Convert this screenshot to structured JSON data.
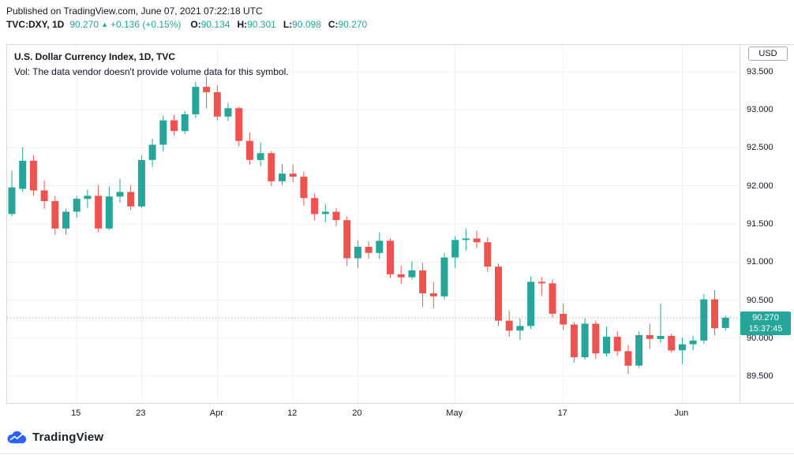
{
  "header": {
    "published": "Published on TradingView.com, June 07, 2021 07:22:18 UTC",
    "symbol": "TVC:DXY, 1D",
    "last_price": "90.270",
    "up_arrow": "▲",
    "change": "+0.136 (+0.15%)",
    "ohlc": [
      {
        "label": "O:",
        "value": "90.134"
      },
      {
        "label": "H:",
        "value": "90.301"
      },
      {
        "label": "L:",
        "value": "90.098"
      },
      {
        "label": "C:",
        "value": "90.270"
      }
    ]
  },
  "chart": {
    "legend_title": "U.S. Dollar Currency Index, 1D, TVC",
    "vol_note": "Vol: The data vendor doesn't provide volume data for this symbol.",
    "currency": "USD",
    "last_price": "90.270",
    "countdown": "15:37:45"
  },
  "footer": {
    "brand": "TradingView",
    "logo_color": "#2962ff"
  },
  "chart_data": {
    "type": "candlestick",
    "title": "U.S. Dollar Currency Index, 1D, TVC",
    "symbol": "TVC:DXY",
    "interval": "1D",
    "last_price_value": 90.27,
    "countdown": "15:37:45",
    "grid": true,
    "colors": {
      "up": "#26a69a",
      "down": "#ef5350",
      "brand_blue": "#2962ff"
    },
    "y_axis": {
      "min": 89.15,
      "max": 93.85,
      "ticks": [
        {
          "value": 93.5,
          "label": "93.500"
        },
        {
          "value": 93.0,
          "label": "93.000"
        },
        {
          "value": 92.5,
          "label": "92.500"
        },
        {
          "value": 92.0,
          "label": "92.000"
        },
        {
          "value": 91.5,
          "label": "91.500"
        },
        {
          "value": 91.0,
          "label": "91.000"
        },
        {
          "value": 90.5,
          "label": "90.500"
        },
        {
          "value": 90.0,
          "label": "90.000"
        },
        {
          "value": 89.5,
          "label": "89.500"
        }
      ]
    },
    "x_axis": {
      "ticks": [
        {
          "label": "15",
          "index": 6
        },
        {
          "label": "23",
          "index": 12
        },
        {
          "label": "Apr",
          "index": 19
        },
        {
          "label": "12",
          "index": 26
        },
        {
          "label": "20",
          "index": 32
        },
        {
          "label": "May",
          "index": 41
        },
        {
          "label": "17",
          "index": 51
        },
        {
          "label": "Jun",
          "index": 62
        }
      ]
    },
    "candles": [
      [
        "Mar 5",
        91.63,
        92.2,
        91.6,
        91.98
      ],
      [
        "Mar 8",
        91.96,
        92.51,
        91.92,
        92.33
      ],
      [
        "Mar 9",
        92.33,
        92.4,
        91.87,
        91.94
      ],
      [
        "Mar 10",
        91.94,
        92.07,
        91.7,
        91.8
      ],
      [
        "Mar 11",
        91.8,
        91.87,
        91.36,
        91.44
      ],
      [
        "Mar 12",
        91.44,
        91.7,
        91.36,
        91.66
      ],
      [
        "Mar 15",
        91.66,
        91.87,
        91.58,
        91.83
      ],
      [
        "Mar 16",
        91.83,
        91.95,
        91.71,
        91.87
      ],
      [
        "Mar 17",
        91.87,
        92.01,
        91.39,
        91.44
      ],
      [
        "Mar 18",
        91.44,
        91.99,
        91.42,
        91.86
      ],
      [
        "Mar 19",
        91.86,
        92.09,
        91.78,
        91.92
      ],
      [
        "Mar 22",
        91.92,
        92.01,
        91.68,
        91.73
      ],
      [
        "Mar 23",
        91.73,
        92.4,
        91.71,
        92.34
      ],
      [
        "Mar 24",
        92.34,
        92.62,
        92.25,
        92.54
      ],
      [
        "Mar 25",
        92.54,
        92.92,
        92.45,
        92.86
      ],
      [
        "Mar 26",
        92.86,
        92.93,
        92.66,
        92.72
      ],
      [
        "Mar 29",
        92.72,
        92.98,
        92.68,
        92.94
      ],
      [
        "Mar 30",
        92.94,
        93.37,
        92.89,
        93.3
      ],
      [
        "Mar 31",
        93.3,
        93.44,
        93.02,
        93.23
      ],
      [
        "Apr 1",
        93.23,
        93.32,
        92.86,
        92.91
      ],
      [
        "Apr 2",
        92.91,
        93.09,
        92.85,
        93.02
      ],
      [
        "Apr 5",
        93.02,
        93.04,
        92.52,
        92.59
      ],
      [
        "Apr 6",
        92.59,
        92.7,
        92.28,
        92.34
      ],
      [
        "Apr 7",
        92.34,
        92.57,
        92.26,
        92.43
      ],
      [
        "Apr 8",
        92.43,
        92.46,
        92.0,
        92.06
      ],
      [
        "Apr 9",
        92.06,
        92.29,
        92.01,
        92.16
      ],
      [
        "Apr 12",
        92.16,
        92.28,
        92.05,
        92.12
      ],
      [
        "Apr 13",
        92.12,
        92.19,
        91.74,
        91.84
      ],
      [
        "Apr 14",
        91.84,
        91.9,
        91.55,
        91.63
      ],
      [
        "Apr 15",
        91.63,
        91.76,
        91.52,
        91.66
      ],
      [
        "Apr 16",
        91.66,
        91.71,
        91.47,
        91.55
      ],
      [
        "Apr 19",
        91.55,
        91.6,
        90.95,
        91.05
      ],
      [
        "Apr 20",
        91.05,
        91.28,
        90.92,
        91.2
      ],
      [
        "Apr 21",
        91.2,
        91.27,
        91.04,
        91.12
      ],
      [
        "Apr 22",
        91.12,
        91.39,
        91.04,
        91.28
      ],
      [
        "Apr 23",
        91.28,
        91.31,
        90.79,
        90.84
      ],
      [
        "Apr 26",
        90.84,
        90.95,
        90.71,
        90.8
      ],
      [
        "Apr 27",
        90.8,
        91.01,
        90.77,
        90.89
      ],
      [
        "Apr 28",
        90.89,
        90.99,
        90.41,
        90.59
      ],
      [
        "Apr 29",
        90.59,
        90.74,
        90.39,
        90.55
      ],
      [
        "Apr 30",
        90.55,
        91.12,
        90.51,
        91.06
      ],
      [
        "May 3",
        91.06,
        91.34,
        90.92,
        91.29
      ],
      [
        "May 4",
        91.29,
        91.44,
        91.15,
        91.31
      ],
      [
        "May 5",
        91.31,
        91.41,
        91.18,
        91.26
      ],
      [
        "May 6",
        91.26,
        91.32,
        90.87,
        90.94
      ],
      [
        "May 7",
        90.94,
        90.98,
        90.16,
        90.23
      ],
      [
        "May 10",
        90.23,
        90.36,
        90.02,
        90.1
      ],
      [
        "May 11",
        90.1,
        90.26,
        89.98,
        90.16
      ],
      [
        "May 12",
        90.16,
        90.81,
        90.12,
        90.74
      ],
      [
        "May 13",
        90.74,
        90.8,
        90.56,
        90.72
      ],
      [
        "May 14",
        90.72,
        90.77,
        90.27,
        90.32
      ],
      [
        "May 17",
        90.32,
        90.45,
        90.11,
        90.18
      ],
      [
        "May 18",
        90.18,
        90.21,
        89.68,
        89.75
      ],
      [
        "May 19",
        89.75,
        90.26,
        89.72,
        90.19
      ],
      [
        "May 20",
        90.19,
        90.23,
        89.73,
        89.8
      ],
      [
        "May 21",
        89.8,
        90.15,
        89.76,
        90.02
      ],
      [
        "May 24",
        90.02,
        90.09,
        89.77,
        89.83
      ],
      [
        "May 25",
        89.83,
        89.91,
        89.53,
        89.64
      ],
      [
        "May 26",
        89.64,
        90.09,
        89.61,
        90.04
      ],
      [
        "May 27",
        90.04,
        90.19,
        89.86,
        89.99
      ],
      [
        "May 28",
        89.99,
        90.45,
        89.94,
        90.03
      ],
      [
        "May 31",
        90.03,
        90.06,
        89.81,
        89.84
      ],
      [
        "Jun 1",
        89.84,
        90.01,
        89.66,
        89.92
      ],
      [
        "Jun 2",
        89.92,
        90.03,
        89.84,
        89.97
      ],
      [
        "Jun 3",
        89.97,
        90.58,
        89.93,
        90.51
      ],
      [
        "Jun 4",
        90.51,
        90.63,
        90.04,
        90.13
      ],
      [
        "Jun 7",
        90.134,
        90.301,
        90.098,
        90.27
      ]
    ]
  }
}
